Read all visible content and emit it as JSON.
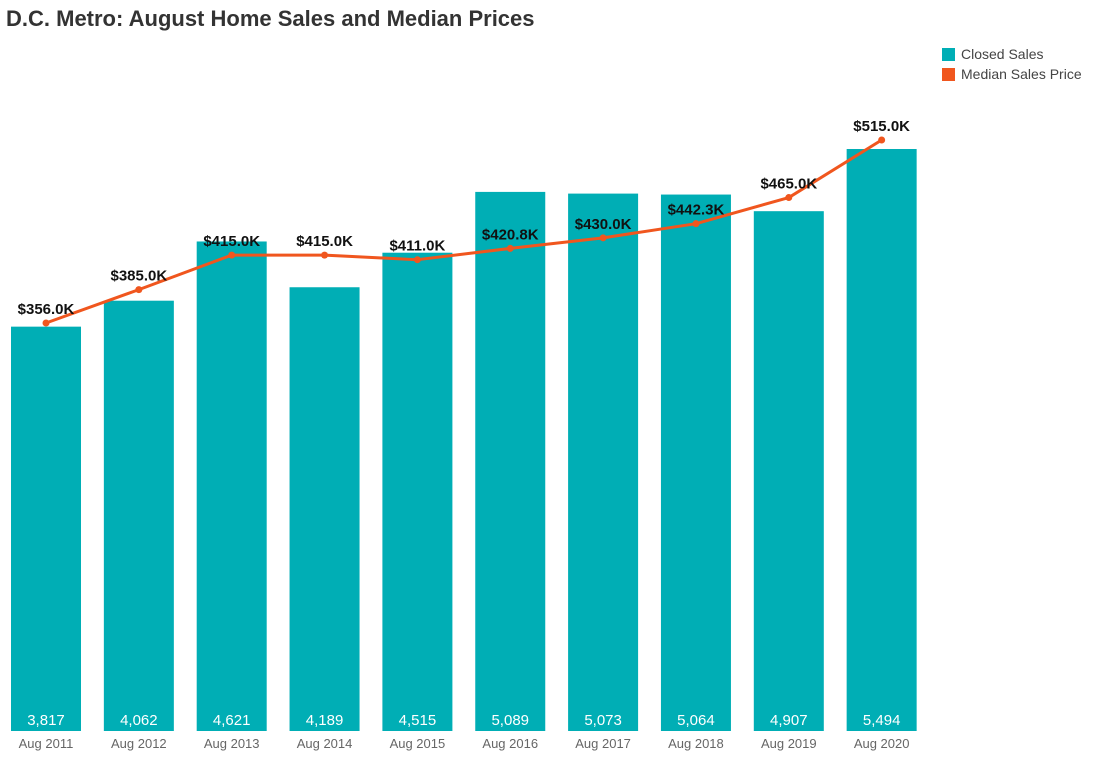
{
  "chart_data": {
    "type": "bar",
    "title": "D.C. Metro: August Home Sales and Median Prices",
    "categories": [
      "Aug 2011",
      "Aug 2012",
      "Aug 2013",
      "Aug 2014",
      "Aug 2015",
      "Aug 2016",
      "Aug 2017",
      "Aug 2018",
      "Aug 2019",
      "Aug 2020"
    ],
    "series": [
      {
        "name": "Closed Sales",
        "type": "bar",
        "color": "#00AEB5",
        "values": [
          3817,
          4062,
          4621,
          4189,
          4515,
          5089,
          5073,
          5064,
          4907,
          5494
        ],
        "labels": [
          "3,817",
          "4,062",
          "4,621",
          "4,189",
          "4,515",
          "5,089",
          "5,073",
          "5,064",
          "4,907",
          "5,494"
        ]
      },
      {
        "name": "Median Sales Price",
        "type": "line",
        "color": "#F0561E",
        "values": [
          356.0,
          385.0,
          415.0,
          415.0,
          411.0,
          420.8,
          430.0,
          442.3,
          465.0,
          515.0
        ],
        "labels": [
          "$356.0K",
          "$385.0K",
          "$415.0K",
          "$415.0K",
          "$411.0K",
          "$420.8K",
          "$430.0K",
          "$442.3K",
          "$465.0K",
          "$515.0K"
        ]
      }
    ],
    "ylim_sales": [
      0,
      5800
    ],
    "ylim_price": [
      0,
      525
    ],
    "grid": false,
    "legend_position": "top-right"
  }
}
